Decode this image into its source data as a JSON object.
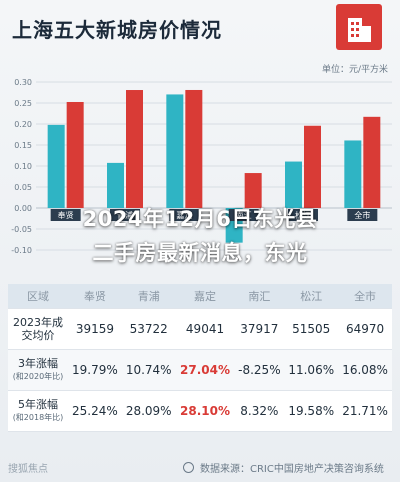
{
  "title": "上海五大新城房价情况",
  "overlay": {
    "line1": "2024年12月6日东光县",
    "line2": "二手房最新消息，东光"
  },
  "chart_data": {
    "type": "bar",
    "unit_label": "单位：元/平方米",
    "categories": [
      "奉贤",
      "青浦",
      "嘉定",
      "南汇",
      "松江",
      "全市"
    ],
    "series": [
      {
        "name": "3年涨幅（和2020年比）",
        "values": [
          19.79,
          10.74,
          27.04,
          -8.25,
          11.06,
          16.08
        ],
        "color": "#2fb4c4"
      },
      {
        "name": "5年涨幅（和2018年比）",
        "values": [
          25.24,
          28.09,
          28.1,
          8.32,
          19.58,
          21.71
        ],
        "color": "#d93b36"
      }
    ],
    "ylim": [
      -10,
      30
    ],
    "yticks": [
      30,
      25,
      20,
      15,
      10,
      5,
      0,
      -5,
      -10
    ],
    "ytick_labels": [
      "0.30",
      "0.25",
      "0.20",
      "0.15",
      "0.10",
      "0.05",
      "0.00",
      "-0.05",
      "-0.10"
    ],
    "grid": true
  },
  "table": {
    "header": [
      "区域",
      "奉贤",
      "青浦",
      "嘉定",
      "南汇",
      "松江",
      "全市"
    ],
    "rows": [
      {
        "label": "2023年成",
        "label2": "交均价",
        "values": [
          "39159",
          "53722",
          "49041",
          "37917",
          "51505",
          "64970"
        ]
      },
      {
        "label": "3年涨幅",
        "label2": "(和2020年比)",
        "values": [
          "19.79%",
          "10.74%",
          "27.04%",
          "-8.25%",
          "11.06%",
          "16.08%"
        ]
      },
      {
        "label": "5年涨幅",
        "label2": "(和2018年比)",
        "values": [
          "25.24%",
          "28.09%",
          "28.10%",
          "8.32%",
          "19.58%",
          "21.71%"
        ]
      }
    ]
  },
  "footer": {
    "source": "数据来源：CRIC中国房地产决策咨询系统",
    "watermark": "搜狐焦点"
  },
  "colors": {
    "accent": "#d93b36",
    "teal": "#2fb4c4"
  }
}
